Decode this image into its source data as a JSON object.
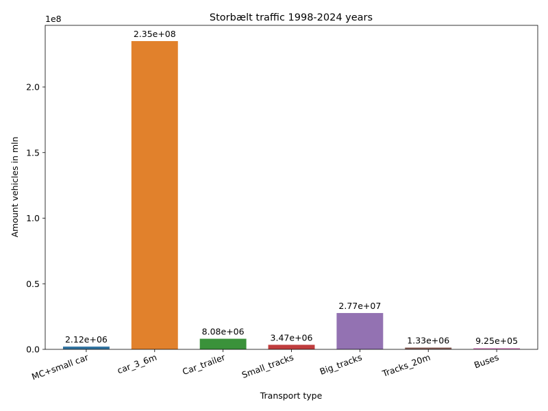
{
  "chart_data": {
    "type": "bar",
    "title": "Storbælt traffic 1998-2024 years",
    "xlabel": "Transport type",
    "ylabel": "Amount vehicles in mln",
    "y_offset_label": "1e8",
    "ylim": [
      0,
      247000000
    ],
    "yticks": [
      0,
      50000000,
      100000000,
      150000000,
      200000000
    ],
    "ytick_labels": [
      "0.0",
      "0.5",
      "1.0",
      "1.5",
      "2.0"
    ],
    "categories": [
      "MC+small car",
      "car_3_6m",
      "Car_trailer",
      "Small_tracks",
      "Big_tracks",
      "Tracks_20m",
      "Buses"
    ],
    "values": [
      2120000,
      235000000,
      8080000,
      3470000,
      27700000,
      1330000,
      925000
    ],
    "data_labels": [
      "2.12e+06",
      "2.35e+08",
      "8.08e+06",
      "3.47e+06",
      "2.77e+07",
      "1.33e+06",
      "9.25e+05"
    ],
    "colors": [
      "#3274a1",
      "#e1812c",
      "#3a923a",
      "#c03d3e",
      "#9372b2",
      "#845b53",
      "#d684bd"
    ],
    "grid": false,
    "legend": "none"
  }
}
